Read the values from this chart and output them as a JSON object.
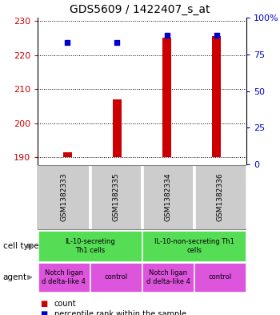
{
  "title": "GDS5609 / 1422407_s_at",
  "samples": [
    "GSM1382333",
    "GSM1382335",
    "GSM1382334",
    "GSM1382336"
  ],
  "counts": [
    191.5,
    207.0,
    225.2,
    225.5
  ],
  "percentile_ranks": [
    83,
    83,
    88,
    88
  ],
  "ylim_left": [
    188,
    231
  ],
  "ylim_right": [
    0,
    100
  ],
  "yticks_left": [
    190,
    200,
    210,
    220,
    230
  ],
  "yticks_right": [
    0,
    25,
    50,
    75,
    100
  ],
  "ytick_labels_right": [
    "0",
    "25",
    "50",
    "75",
    "100%"
  ],
  "bar_color": "#cc0000",
  "dot_color": "#0000cc",
  "bar_bottom": 190,
  "cell_type_labels": [
    "IL-10-secreting\nTh1 cells",
    "IL-10-non-secreting Th1\ncells"
  ],
  "cell_type_color": "#55dd55",
  "agent_labels": [
    "Notch ligan\nd delta-like 4",
    "control",
    "Notch ligan\nd delta-like 4",
    "control"
  ],
  "agent_color": "#dd55dd",
  "sample_bg_color": "#cccccc",
  "left_tick_color": "#cc0000",
  "right_tick_color": "#0000cc",
  "fig_width": 3.5,
  "fig_height": 3.93,
  "dpi": 100
}
